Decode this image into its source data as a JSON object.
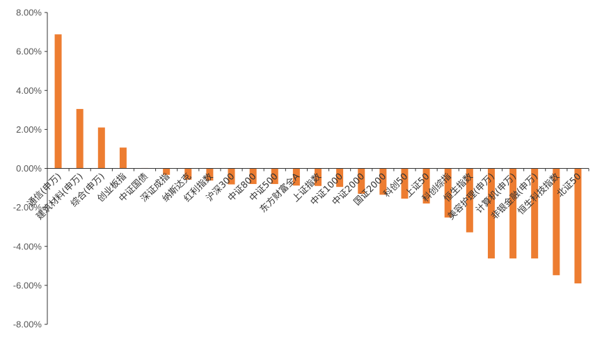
{
  "chart_data": {
    "type": "bar",
    "title": "",
    "xlabel": "",
    "ylabel": "",
    "ylim": [
      -8,
      8
    ],
    "ytick_step": 2,
    "ytick_labels": [
      "-8.00%",
      "-6.00%",
      "-4.00%",
      "-2.00%",
      "0.00%",
      "2.00%",
      "4.00%",
      "6.00%",
      "8.00%"
    ],
    "grid": false,
    "legend": "none",
    "bar_color": "#ED7D31",
    "categories": [
      "通信(申万)",
      "建筑材料(申万)",
      "综合(申万)",
      "创业板指",
      "中证国债",
      "深证成指",
      "纳斯达克",
      "红利指数",
      "沪深300",
      "中证800",
      "中证500",
      "东方财富全A",
      "上证指数",
      "中证1000",
      "中证2000",
      "国证2000",
      "科创50",
      "上证50",
      "科创综指",
      "恒生指数",
      "美容护理(申万)",
      "计算机(申万)",
      "非银金融(申万)",
      "恒生科技指数",
      "北证50"
    ],
    "values": [
      6.88,
      3.05,
      2.1,
      1.07,
      0.02,
      -0.33,
      -0.58,
      -0.62,
      -0.82,
      -0.8,
      -0.8,
      -0.88,
      -0.9,
      -0.95,
      -1.3,
      -1.35,
      -1.55,
      -1.8,
      -2.52,
      -3.28,
      -4.62,
      -4.62,
      -4.62,
      -5.48,
      -5.9
    ]
  }
}
